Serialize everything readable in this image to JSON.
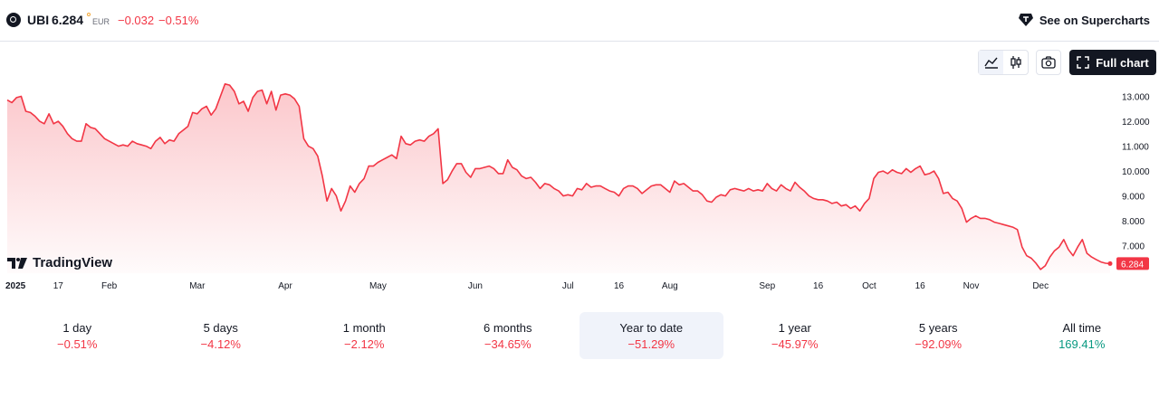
{
  "header": {
    "symbol": "UBI",
    "price": "6.284",
    "currency": "EUR",
    "change": "−0.032",
    "change_pct": "−0.51%",
    "supercharts_label": "See on Supercharts"
  },
  "toolbar": {
    "full_chart_label": "Full chart"
  },
  "watermark": "TradingView",
  "colors": {
    "line": "#f23645",
    "negative": "#f23645",
    "positive": "#089981"
  },
  "chart_data": {
    "type": "area",
    "title": "",
    "xlabel": "",
    "ylabel": "",
    "ylim": [
      5.9,
      13.6
    ],
    "yticks": [
      "13.000",
      "12.000",
      "11.000",
      "10.000",
      "9.000",
      "8.000",
      "7.000"
    ],
    "ytick_values": [
      13,
      12,
      11,
      10,
      9,
      8,
      7
    ],
    "xticks": [
      {
        "label": "2025",
        "t": 0
      },
      {
        "label": "17",
        "t": 11
      },
      {
        "label": "Feb",
        "t": 22
      },
      {
        "label": "Mar",
        "t": 41
      },
      {
        "label": "Apr",
        "t": 60
      },
      {
        "label": "May",
        "t": 80
      },
      {
        "label": "Jun",
        "t": 101
      },
      {
        "label": "Jul",
        "t": 121
      },
      {
        "label": "16",
        "t": 132
      },
      {
        "label": "Aug",
        "t": 143
      },
      {
        "label": "Sep",
        "t": 164
      },
      {
        "label": "16",
        "t": 175
      },
      {
        "label": "Oct",
        "t": 186
      },
      {
        "label": "16",
        "t": 197
      },
      {
        "label": "Nov",
        "t": 208
      },
      {
        "label": "Dec",
        "t": 223
      }
    ],
    "last_value_label": "6.284",
    "last_value": 6.284,
    "series": [
      {
        "values": [
          12.85,
          12.75,
          12.95,
          13.0,
          12.4,
          12.35,
          12.2,
          12.0,
          11.9,
          12.3,
          11.9,
          12.0,
          11.8,
          11.5,
          11.3,
          11.2,
          11.2,
          11.9,
          11.75,
          11.7,
          11.5,
          11.3,
          11.2,
          11.1,
          11.0,
          11.05,
          11.0,
          11.2,
          11.1,
          11.05,
          11.0,
          10.9,
          11.2,
          11.35,
          11.1,
          11.25,
          11.2,
          11.5,
          11.65,
          11.8,
          12.35,
          12.3,
          12.5,
          12.6,
          12.25,
          12.5,
          13.0,
          13.5,
          13.45,
          13.2,
          12.7,
          12.8,
          12.4,
          12.95,
          13.2,
          13.25,
          12.7,
          13.2,
          12.45,
          13.05,
          13.1,
          13.05,
          12.9,
          12.6,
          11.3,
          11.0,
          10.9,
          10.6,
          9.8,
          8.8,
          9.3,
          9.0,
          8.4,
          8.8,
          9.4,
          9.15,
          9.5,
          9.7,
          10.2,
          10.2,
          10.35,
          10.45,
          10.55,
          10.65,
          10.5,
          11.4,
          11.1,
          11.05,
          11.2,
          11.25,
          11.2,
          11.4,
          11.5,
          11.7,
          9.5,
          9.65,
          10.0,
          10.3,
          10.3,
          9.95,
          9.75,
          10.1,
          10.1,
          10.15,
          10.2,
          10.1,
          9.9,
          9.9,
          10.45,
          10.15,
          10.05,
          9.8,
          9.7,
          9.75,
          9.55,
          9.3,
          9.5,
          9.45,
          9.3,
          9.2,
          9.0,
          9.05,
          9.0,
          9.3,
          9.25,
          9.5,
          9.35,
          9.4,
          9.4,
          9.3,
          9.2,
          9.15,
          9.0,
          9.3,
          9.4,
          9.4,
          9.3,
          9.1,
          9.25,
          9.4,
          9.45,
          9.45,
          9.3,
          9.15,
          9.6,
          9.45,
          9.5,
          9.35,
          9.2,
          9.2,
          9.05,
          8.8,
          8.75,
          8.95,
          9.05,
          9.0,
          9.25,
          9.3,
          9.25,
          9.2,
          9.3,
          9.2,
          9.25,
          9.2,
          9.5,
          9.3,
          9.2,
          9.45,
          9.3,
          9.2,
          9.55,
          9.35,
          9.2,
          9.0,
          8.9,
          8.85,
          8.85,
          8.8,
          8.7,
          8.75,
          8.6,
          8.65,
          8.5,
          8.6,
          8.4,
          8.7,
          8.9,
          9.7,
          9.95,
          10.0,
          9.9,
          10.05,
          9.95,
          9.9,
          10.1,
          9.95,
          10.1,
          10.2,
          9.85,
          9.9,
          10.0,
          9.7,
          9.1,
          9.15,
          8.9,
          8.8,
          8.5,
          7.95,
          8.1,
          8.2,
          8.1,
          8.1,
          8.05,
          7.95,
          7.9,
          7.85,
          7.8,
          7.75,
          7.65,
          6.95,
          6.6,
          6.5,
          6.3,
          6.05,
          6.2,
          6.55,
          6.8,
          6.95,
          7.25,
          6.85,
          6.6,
          6.95,
          7.25,
          6.7,
          6.55,
          6.45,
          6.35,
          6.3,
          6.284
        ]
      }
    ]
  },
  "periods": [
    {
      "label": "1 day",
      "value": "−0.51%",
      "sign": "neg",
      "active": false
    },
    {
      "label": "5 days",
      "value": "−4.12%",
      "sign": "neg",
      "active": false
    },
    {
      "label": "1 month",
      "value": "−2.12%",
      "sign": "neg",
      "active": false
    },
    {
      "label": "6 months",
      "value": "−34.65%",
      "sign": "neg",
      "active": false
    },
    {
      "label": "Year to date",
      "value": "−51.29%",
      "sign": "neg",
      "active": true
    },
    {
      "label": "1 year",
      "value": "−45.97%",
      "sign": "neg",
      "active": false
    },
    {
      "label": "5 years",
      "value": "−92.09%",
      "sign": "neg",
      "active": false
    },
    {
      "label": "All time",
      "value": "169.41%",
      "sign": "pos",
      "active": false
    }
  ]
}
